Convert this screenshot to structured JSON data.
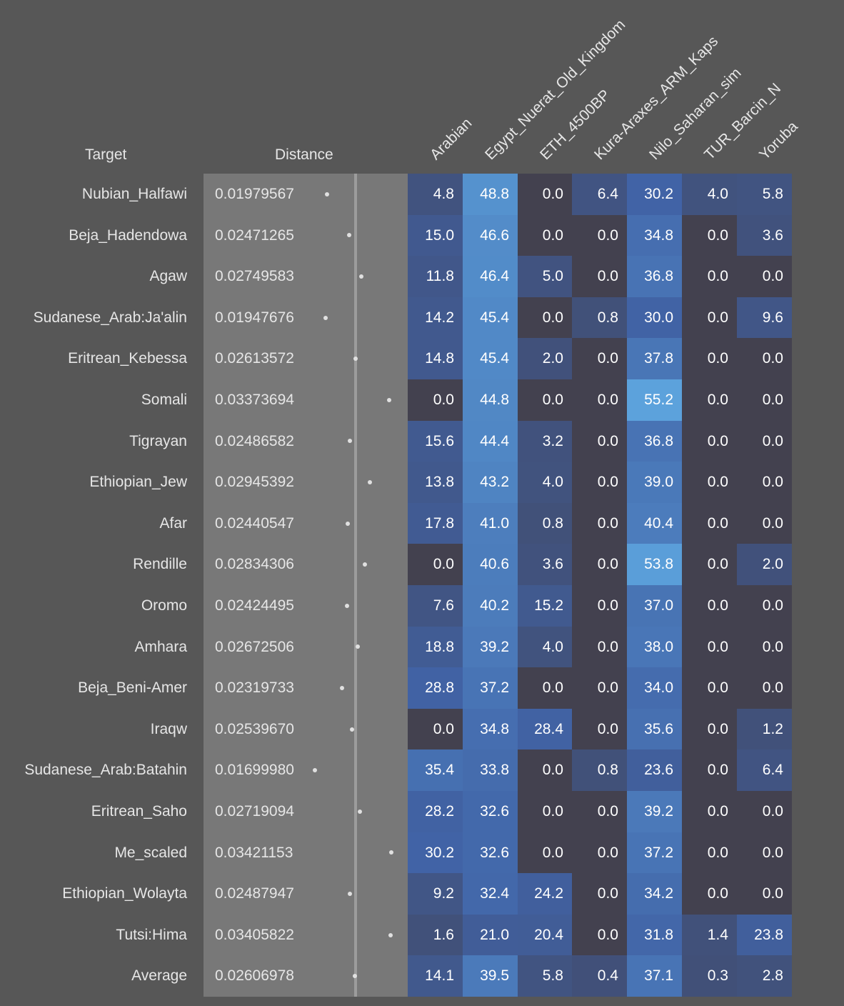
{
  "chart_data": {
    "type": "heatmap",
    "headers": {
      "target": "Target",
      "distance": "Distance"
    },
    "columns": [
      "Arabian",
      "Egypt_Nuerat_Old_Kingdom",
      "ETH_4500BP",
      "Kura-Araxes_ARM_Kaps",
      "Nilo_Saharan_sim",
      "TUR_Barcin_N",
      "Yoruba"
    ],
    "rows": [
      {
        "target": "Nubian_Halfawi",
        "distance": "0.01979567",
        "values": [
          "4.8",
          "48.8",
          "0.0",
          "6.4",
          "30.2",
          "4.0",
          "5.8"
        ]
      },
      {
        "target": "Beja_Hadendowa",
        "distance": "0.02471265",
        "values": [
          "15.0",
          "46.6",
          "0.0",
          "0.0",
          "34.8",
          "0.0",
          "3.6"
        ]
      },
      {
        "target": "Agaw",
        "distance": "0.02749583",
        "values": [
          "11.8",
          "46.4",
          "5.0",
          "0.0",
          "36.8",
          "0.0",
          "0.0"
        ]
      },
      {
        "target": "Sudanese_Arab:Ja'alin",
        "distance": "0.01947676",
        "values": [
          "14.2",
          "45.4",
          "0.0",
          "0.8",
          "30.0",
          "0.0",
          "9.6"
        ]
      },
      {
        "target": "Eritrean_Kebessa",
        "distance": "0.02613572",
        "values": [
          "14.8",
          "45.4",
          "2.0",
          "0.0",
          "37.8",
          "0.0",
          "0.0"
        ]
      },
      {
        "target": "Somali",
        "distance": "0.03373694",
        "values": [
          "0.0",
          "44.8",
          "0.0",
          "0.0",
          "55.2",
          "0.0",
          "0.0"
        ]
      },
      {
        "target": "Tigrayan",
        "distance": "0.02486582",
        "values": [
          "15.6",
          "44.4",
          "3.2",
          "0.0",
          "36.8",
          "0.0",
          "0.0"
        ]
      },
      {
        "target": "Ethiopian_Jew",
        "distance": "0.02945392",
        "values": [
          "13.8",
          "43.2",
          "4.0",
          "0.0",
          "39.0",
          "0.0",
          "0.0"
        ]
      },
      {
        "target": "Afar",
        "distance": "0.02440547",
        "values": [
          "17.8",
          "41.0",
          "0.8",
          "0.0",
          "40.4",
          "0.0",
          "0.0"
        ]
      },
      {
        "target": "Rendille",
        "distance": "0.02834306",
        "values": [
          "0.0",
          "40.6",
          "3.6",
          "0.0",
          "53.8",
          "0.0",
          "2.0"
        ]
      },
      {
        "target": "Oromo",
        "distance": "0.02424495",
        "values": [
          "7.6",
          "40.2",
          "15.2",
          "0.0",
          "37.0",
          "0.0",
          "0.0"
        ]
      },
      {
        "target": "Amhara",
        "distance": "0.02672506",
        "values": [
          "18.8",
          "39.2",
          "4.0",
          "0.0",
          "38.0",
          "0.0",
          "0.0"
        ]
      },
      {
        "target": "Beja_Beni-Amer",
        "distance": "0.02319733",
        "values": [
          "28.8",
          "37.2",
          "0.0",
          "0.0",
          "34.0",
          "0.0",
          "0.0"
        ]
      },
      {
        "target": "Iraqw",
        "distance": "0.02539670",
        "values": [
          "0.0",
          "34.8",
          "28.4",
          "0.0",
          "35.6",
          "0.0",
          "1.2"
        ]
      },
      {
        "target": "Sudanese_Arab:Batahin",
        "distance": "0.01699980",
        "values": [
          "35.4",
          "33.8",
          "0.0",
          "0.8",
          "23.6",
          "0.0",
          "6.4"
        ]
      },
      {
        "target": "Eritrean_Saho",
        "distance": "0.02719094",
        "values": [
          "28.2",
          "32.6",
          "0.0",
          "0.0",
          "39.2",
          "0.0",
          "0.0"
        ]
      },
      {
        "target": "Me_scaled",
        "distance": "0.03421153",
        "values": [
          "30.2",
          "32.6",
          "0.0",
          "0.0",
          "37.2",
          "0.0",
          "0.0"
        ]
      },
      {
        "target": "Ethiopian_Wolayta",
        "distance": "0.02487947",
        "values": [
          "9.2",
          "32.4",
          "24.2",
          "0.0",
          "34.2",
          "0.0",
          "0.0"
        ]
      },
      {
        "target": "Tutsi:Hima",
        "distance": "0.03405822",
        "values": [
          "1.6",
          "21.0",
          "20.4",
          "0.0",
          "31.8",
          "1.4",
          "23.8"
        ]
      },
      {
        "target": "Average",
        "distance": "0.02606978",
        "values": [
          "14.1",
          "39.5",
          "5.8",
          "0.4",
          "37.1",
          "0.3",
          "2.8"
        ]
      }
    ],
    "average_distance": 0.02606978,
    "color_scale": {
      "low": "#43414f",
      "mid": "#4163a6",
      "high": "#5ca2dc",
      "max_value": 55.2
    }
  }
}
